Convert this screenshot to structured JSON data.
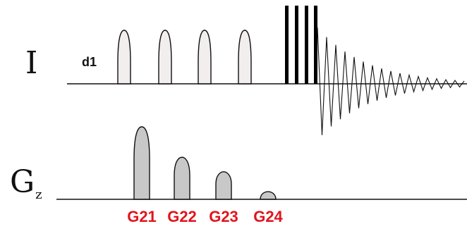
{
  "channels": {
    "proton": {
      "label": "I"
    },
    "gradient": {
      "label": "G",
      "subscript": "z"
    }
  },
  "delay_label": "d1",
  "selective_pulse_count": 4,
  "hard_pulse_count": 4,
  "gradients": [
    {
      "label": "G21",
      "relative_amplitude": 1.0
    },
    {
      "label": "G22",
      "relative_amplitude": 0.58
    },
    {
      "label": "G23",
      "relative_amplitude": 0.38
    },
    {
      "label": "G24",
      "relative_amplitude": 0.14
    }
  ],
  "colors": {
    "line": "#111111",
    "soft_pulse_fill": "#f2eeee",
    "gradient_fill": "#c8c8c8",
    "gradient_label": "#e0151b",
    "hard_pulse": "#000000"
  }
}
